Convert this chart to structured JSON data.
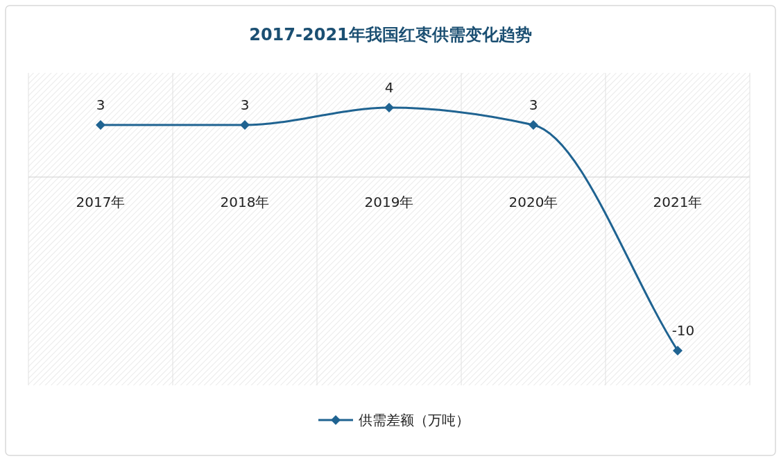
{
  "chart_data": {
    "type": "line",
    "title": "2017-2021年我国红枣供需变化趋势",
    "categories": [
      "2017年",
      "2018年",
      "2019年",
      "2020年",
      "2021年"
    ],
    "series": [
      {
        "name": "供需差额（万吨）",
        "color": "#1f6391",
        "values": [
          3,
          3,
          4,
          3,
          -10
        ]
      }
    ],
    "ylim": [
      -12,
      6
    ],
    "data_labels": true,
    "grid": "x",
    "legend": "bottom",
    "marker": "diamond",
    "line_style": "solid"
  }
}
